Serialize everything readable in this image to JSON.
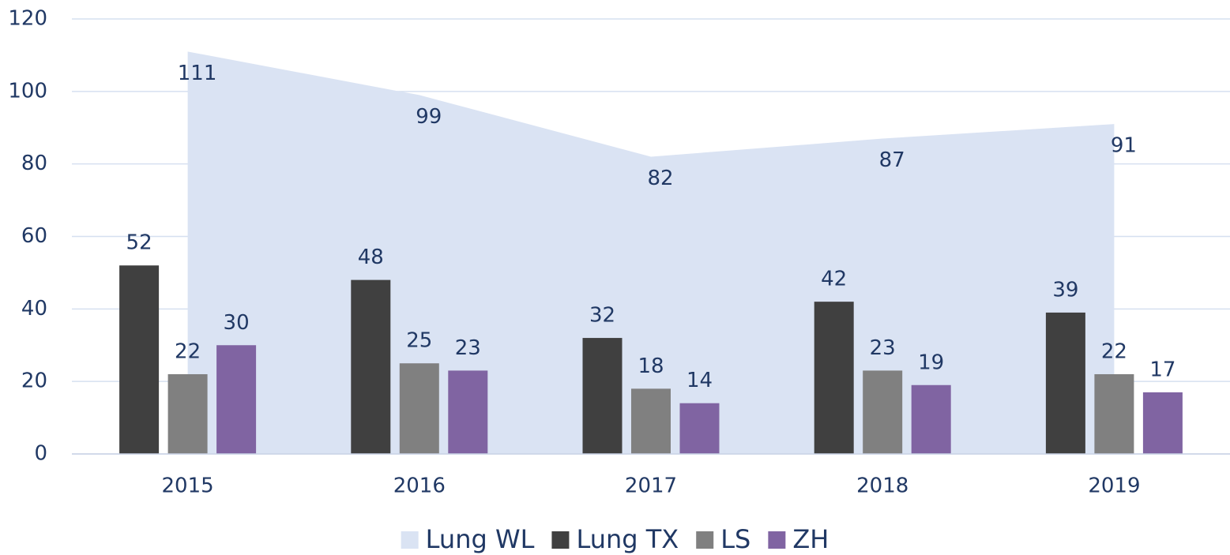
{
  "chart_data": {
    "type": "bar",
    "categories": [
      "2015",
      "2016",
      "2017",
      "2018",
      "2019"
    ],
    "series": [
      {
        "name": "Lung WL",
        "type": "area",
        "color": "#dae3f3",
        "values": [
          111,
          99,
          82,
          87,
          91
        ]
      },
      {
        "name": "Lung TX",
        "type": "bar",
        "color": "#404040",
        "values": [
          52,
          48,
          32,
          42,
          39
        ]
      },
      {
        "name": "LS",
        "type": "bar",
        "color": "#808080",
        "values": [
          22,
          25,
          18,
          23,
          22
        ]
      },
      {
        "name": "ZH",
        "type": "bar",
        "color": "#8064a2",
        "values": [
          30,
          23,
          14,
          19,
          17
        ]
      }
    ],
    "ylim": [
      0,
      120
    ],
    "yticks": [
      0,
      20,
      40,
      60,
      80,
      100,
      120
    ],
    "grid": true,
    "legend": "bottom"
  }
}
